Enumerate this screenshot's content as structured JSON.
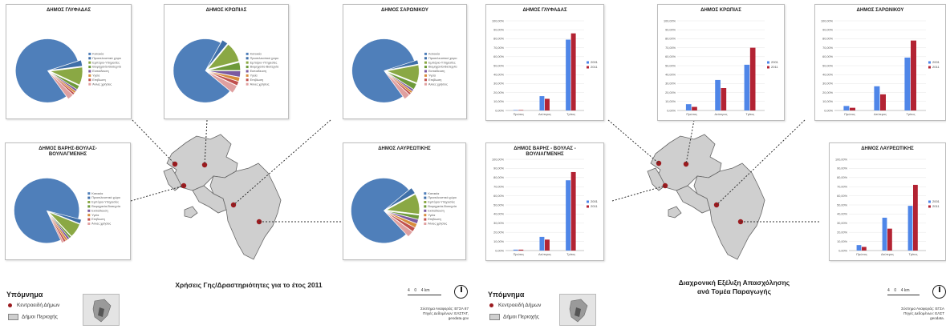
{
  "left_map": {
    "caption": "Χρήσεις Γης/Δραστηριότητες για το έτος 2011",
    "legend_title": "Υπόμνημα",
    "legend_centroid": "Κεντροειδή Δήμων",
    "legend_municipalities": "Δήμοι Περιοχής",
    "scale_labels": [
      "4",
      "0",
      "4 km"
    ],
    "source_lines": [
      "Σύστημα Αναφοράς: ΕΓΣΑ 87",
      "Πηγές Δεδομένων: ΕΛΣΤΑΤ,",
      "geodata.gov"
    ]
  },
  "right_map": {
    "caption_line1": "Διαχρονική Εξέλιξη Απασχόλησης",
    "caption_line2": "ανά Τομέα Παραγωγής",
    "legend_title": "Υπόμνημα",
    "legend_centroid": "Κεντροειδή Δήμων",
    "legend_municipalities": "Δήμοι Περιοχής",
    "scale_labels": [
      "4",
      "0",
      "4 km"
    ],
    "source_lines": [
      "Σύστημα Αναφοράς: ΕΓΣΑ",
      "Πηγές Δεδομένων: ΕΛΣΤ",
      "geodata."
    ]
  },
  "pie_legend": [
    "Κατοικία",
    "Προσελευστικό χώρο",
    "Εμπόριο-Υπηρεσίες",
    "Βιομηχανία-Βιοτεχνία",
    "Εκπαίδευση",
    "Υγεία",
    "Επιβίωση",
    "Άλλες χρήσεις"
  ],
  "pie_colors": [
    "#4f7fba",
    "#3f6fa8",
    "#8aa844",
    "#6e9a3a",
    "#7b5aa0",
    "#d88c3c",
    "#c0504d",
    "#e0a0a0"
  ],
  "colors": {
    "series_2001": "#4f86e8",
    "series_2011": "#b32333",
    "dot": "#9b1b1f",
    "map_fill": "#cfcfcf"
  },
  "chart_data": [
    {
      "type": "pie",
      "title": "ΔΗΜΟΣ ΓΛΥΦΑΔΑΣ",
      "labels": [
        "Κατοικία",
        "Προσελευστικό χώρο",
        "Εμπόριο-Υπηρεσίες",
        "Βιομηχανία-Βιοτεχνία",
        "Εκπαίδευση",
        "Υγεία",
        "Επιβίωση",
        "Άλλες χρήσεις"
      ],
      "values": [
        80,
        3,
        9,
        2,
        1,
        1,
        1,
        3
      ]
    },
    {
      "type": "pie",
      "title": "ΔΗΜΟΣ ΚΡΩΠΙΑΣ",
      "labels": [
        "Κατοικία",
        "Προσελευστικό χώρο",
        "Εμπόριο-Υπηρεσίες",
        "Βιομηχανία-Βιοτεχνία",
        "Εκπαίδευση",
        "Υγεία",
        "Επιβίωση",
        "Άλλες χρήσεις"
      ],
      "values": [
        72,
        3,
        10,
        4,
        3,
        2,
        2,
        4
      ]
    },
    {
      "type": "pie",
      "title": "ΔΗΜΟΣ ΣΑΡΩΝΙΚΟΥ",
      "labels": [
        "Κατοικία",
        "Προσελευστικό χώρο",
        "Εμπόριο-Υπηρεσίες",
        "Βιομηχανία-Βιοτεχνία",
        "Εκπαίδευση",
        "Υγεία",
        "Επιβίωση",
        "Άλλες χρήσεις"
      ],
      "values": [
        80,
        2,
        9,
        3,
        1,
        1,
        1,
        3
      ]
    },
    {
      "type": "pie",
      "title": "ΔΗΜΟΣ ΒΑΡΗΣ-ΒΟΥΛΑΣ-ΒΟΥΛΙΑΓΜΕΝΗΣ",
      "labels": [
        "Κατοικία",
        "Προσελευστικό χώρο",
        "Εμπόριο-Υπηρεσίες",
        "Βιομηχανία-Βιοτεχνία",
        "Εκπαίδευση",
        "Υγεία",
        "Επιβίωση",
        "Άλλες χρήσεις"
      ],
      "values": [
        86,
        2,
        7,
        1,
        1,
        1,
        1,
        1
      ]
    },
    {
      "type": "pie",
      "title": "ΔΗΜΟΣ ΛΑΥΡΕΩΤΙΚΗΣ",
      "labels": [
        "Κατοικία",
        "Προσελευστικό χώρο",
        "Εμπόριο-Υπηρεσίες",
        "Βιομηχανία-Βιοτεχνία",
        "Εκπαίδευση",
        "Υγεία",
        "Επιβίωση",
        "Άλλες χρήσεις"
      ],
      "values": [
        76,
        3,
        10,
        2,
        2,
        2,
        2,
        3
      ]
    },
    {
      "type": "bar",
      "title": "ΔΗΜΟΣ ΓΛΥΦΑΔΑΣ",
      "categories": [
        "Πρώτος",
        "Δεύτερος",
        "Τρίτος"
      ],
      "series": [
        {
          "name": "2001",
          "values": [
            0.5,
            16,
            79
          ]
        },
        {
          "name": "2011",
          "values": [
            0.5,
            13,
            86
          ]
        }
      ],
      "ylim": [
        0,
        100
      ],
      "yticks": [
        "0,00%",
        "10,00%",
        "20,00%",
        "30,00%",
        "40,00%",
        "50,00%",
        "60,00%",
        "70,00%",
        "80,00%",
        "90,00%",
        "100,00%"
      ]
    },
    {
      "type": "bar",
      "title": "ΔΗΜΟΣ ΚΡΩΠΙΑΣ",
      "categories": [
        "Πρώτος",
        "Δεύτερος",
        "Τρίτος"
      ],
      "series": [
        {
          "name": "2001",
          "values": [
            7,
            34,
            51
          ]
        },
        {
          "name": "2011",
          "values": [
            4,
            25,
            70
          ]
        }
      ],
      "ylim": [
        0,
        100
      ],
      "yticks": [
        "0,00%",
        "10,00%",
        "20,00%",
        "30,00%",
        "40,00%",
        "50,00%",
        "60,00%",
        "70,00%",
        "80,00%",
        "90,00%",
        "100,00%"
      ]
    },
    {
      "type": "bar",
      "title": "ΔΗΜΟΣ ΣΑΡΩΝΙΚΟΥ",
      "categories": [
        "Πρώτος",
        "Δεύτερος",
        "Τρίτος"
      ],
      "series": [
        {
          "name": "2001",
          "values": [
            5,
            27,
            59
          ]
        },
        {
          "name": "2011",
          "values": [
            3,
            18,
            78
          ]
        }
      ],
      "ylim": [
        0,
        100
      ],
      "yticks": [
        "0,00%",
        "10,00%",
        "20,00%",
        "30,00%",
        "40,00%",
        "50,00%",
        "60,00%",
        "70,00%",
        "80,00%",
        "90,00%",
        "100,00%"
      ]
    },
    {
      "type": "bar",
      "title": "ΔΗΜΟΣ ΒΑΡΗΣ - ΒΟΥΛΑΣ - ΒΟΥΛΙΑΓΜΕΝΗΣ",
      "categories": [
        "Πρώτος",
        "Δεύτερος",
        "Τρίτος"
      ],
      "series": [
        {
          "name": "2001",
          "values": [
            1,
            15,
            77
          ]
        },
        {
          "name": "2011",
          "values": [
            1,
            12,
            86
          ]
        }
      ],
      "ylim": [
        0,
        100
      ],
      "yticks": [
        "0,00%",
        "10,00%",
        "20,00%",
        "30,00%",
        "40,00%",
        "50,00%",
        "60,00%",
        "70,00%",
        "80,00%",
        "90,00%",
        "100,00%"
      ]
    },
    {
      "type": "bar",
      "title": "ΔΗΜΟΣ ΛΑΥΡΕΩΤΙΚΗΣ",
      "categories": [
        "Πρώτος",
        "Δεύτερος",
        "Τρίτος"
      ],
      "series": [
        {
          "name": "2001",
          "values": [
            6,
            36,
            49
          ]
        },
        {
          "name": "2011",
          "values": [
            4,
            24,
            72
          ]
        }
      ],
      "ylim": [
        0,
        100
      ],
      "yticks": [
        "0,00%",
        "10,00%",
        "20,00%",
        "30,00%",
        "40,00%",
        "50,00%",
        "60,00%",
        "70,00%",
        "80,00%",
        "90,00%",
        "100,00%"
      ]
    }
  ]
}
